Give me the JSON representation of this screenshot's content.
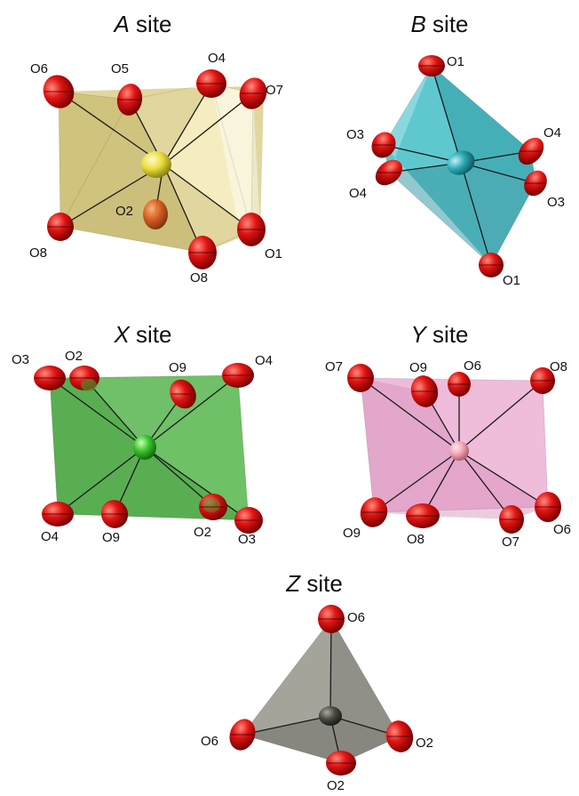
{
  "colors": {
    "oxygen": "#e01414",
    "oxygen_dark": "#7a0000",
    "a_poly": "#c9b44f",
    "a_center": "#e8df3a",
    "b_poly": "#3fb7bf",
    "b_center": "#2aa7b4",
    "x_poly": "#57b44f",
    "x_center": "#36c22a",
    "y_poly": "#e8a6cd",
    "y_center": "#f2a6b8",
    "z_poly": "#8f8f86",
    "z_center": "#4a4a44"
  },
  "panels": [
    {
      "id": "A",
      "title": {
        "letter": "A",
        "word": " site"
      },
      "labels": [
        "O6",
        "O5",
        "O4",
        "O7",
        "O2",
        "O8",
        "O8",
        "O1"
      ]
    },
    {
      "id": "B",
      "title": {
        "letter": "B",
        "word": " site"
      },
      "labels": [
        "O1",
        "O3",
        "O4",
        "O4",
        "O3",
        "O1"
      ]
    },
    {
      "id": "X",
      "title": {
        "letter": "X",
        "word": " site"
      },
      "labels": [
        "O3",
        "O2",
        "O9",
        "O4",
        "O4",
        "O9",
        "O2",
        "O3"
      ]
    },
    {
      "id": "Y",
      "title": {
        "letter": "Y",
        "word": " site"
      },
      "labels": [
        "O7",
        "O9",
        "O6",
        "O8",
        "O9",
        "O8",
        "O7",
        "O6"
      ]
    },
    {
      "id": "Z",
      "title": {
        "letter": "Z",
        "word": " site"
      },
      "labels": [
        "O6",
        "O6",
        "O2",
        "O2"
      ]
    }
  ]
}
